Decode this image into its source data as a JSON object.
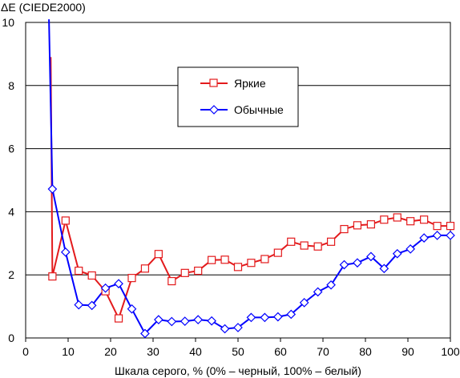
{
  "chart_data": {
    "type": "line",
    "title": "ΔE (CIEDE2000)",
    "xlabel": "Шкала серого, % (0% – черный, 100% – белый)",
    "ylabel": "",
    "xlim": [
      0,
      100
    ],
    "ylim": [
      0,
      10
    ],
    "xticks": [
      0,
      10,
      20,
      30,
      40,
      50,
      60,
      70,
      80,
      90,
      100
    ],
    "yticks": [
      0,
      2,
      4,
      6,
      8,
      10
    ],
    "grid": "horizontal",
    "legend_position": "upper-center",
    "series": [
      {
        "name": "Яркие",
        "color": "#e31a1c",
        "marker": "square",
        "x": [
          5.9,
          6.3,
          9.4,
          12.5,
          15.6,
          18.8,
          21.9,
          25.0,
          28.1,
          31.3,
          34.4,
          37.5,
          40.6,
          43.8,
          46.9,
          50.0,
          53.1,
          56.3,
          59.4,
          62.5,
          65.6,
          68.8,
          71.9,
          75.0,
          78.1,
          81.3,
          84.4,
          87.5,
          90.6,
          93.8,
          96.9,
          100.0
        ],
        "y": [
          8.9,
          1.95,
          3.72,
          2.13,
          1.98,
          1.48,
          0.62,
          1.9,
          2.2,
          2.66,
          1.8,
          2.06,
          2.13,
          2.47,
          2.48,
          2.25,
          2.38,
          2.5,
          2.7,
          3.05,
          2.93,
          2.9,
          3.05,
          3.45,
          3.57,
          3.6,
          3.75,
          3.82,
          3.7,
          3.75,
          3.55,
          3.55
        ],
        "plot_markers_from_index": 1
      },
      {
        "name": "Обычные",
        "color": "#0000ff",
        "marker": "diamond",
        "x": [
          5.5,
          6.3,
          9.4,
          12.5,
          15.6,
          18.8,
          21.9,
          25.0,
          28.1,
          31.3,
          34.4,
          37.5,
          40.6,
          43.8,
          46.9,
          50.0,
          53.1,
          56.3,
          59.4,
          62.5,
          65.6,
          68.8,
          71.9,
          75.0,
          78.1,
          81.3,
          84.4,
          87.5,
          90.6,
          93.8,
          96.9,
          100.0
        ],
        "y": [
          10.1,
          4.72,
          2.72,
          1.05,
          1.03,
          1.58,
          1.72,
          0.92,
          0.14,
          0.58,
          0.52,
          0.53,
          0.58,
          0.54,
          0.29,
          0.33,
          0.65,
          0.65,
          0.67,
          0.75,
          1.12,
          1.46,
          1.68,
          2.32,
          2.38,
          2.58,
          2.2,
          2.67,
          2.82,
          3.17,
          3.25,
          3.25
        ],
        "plot_markers_from_index": 1
      }
    ]
  }
}
